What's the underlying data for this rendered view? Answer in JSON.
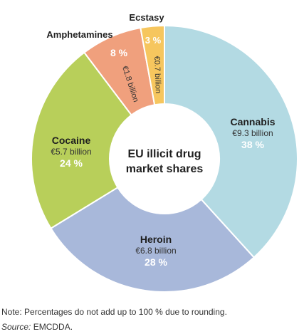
{
  "chart_data": {
    "type": "pie",
    "variant": "donut",
    "title": "EU illicit drug market shares",
    "title_lines": [
      "EU illicit drug",
      "market shares"
    ],
    "slices": [
      {
        "name": "Cannabis",
        "value_label": "€9.3 billion",
        "value": 9.3,
        "percent_label": "38 %",
        "percent": 38,
        "color": "#b3dae3"
      },
      {
        "name": "Heroin",
        "value_label": "€6.8 billion",
        "value": 6.8,
        "percent_label": "28 %",
        "percent": 28,
        "color": "#a8b8da"
      },
      {
        "name": "Cocaine",
        "value_label": "€5.7 billion",
        "value": 5.7,
        "percent_label": "24 %",
        "percent": 24,
        "color": "#b8cf5a"
      },
      {
        "name": "Amphetamines",
        "value_label": "€1.8 billion",
        "value": 1.8,
        "percent_label": "8 %",
        "percent": 8,
        "color": "#f0a07d"
      },
      {
        "name": "Ecstasy",
        "value_label": "€0.7 billion",
        "value": 0.7,
        "percent_label": "3 %",
        "percent": 3,
        "color": "#f6c65e"
      }
    ]
  },
  "footer": {
    "note": "Note: Percentages do not add up to 100 % due to rounding.",
    "source_label": "Source:",
    "source_value": " EMCDDA."
  }
}
